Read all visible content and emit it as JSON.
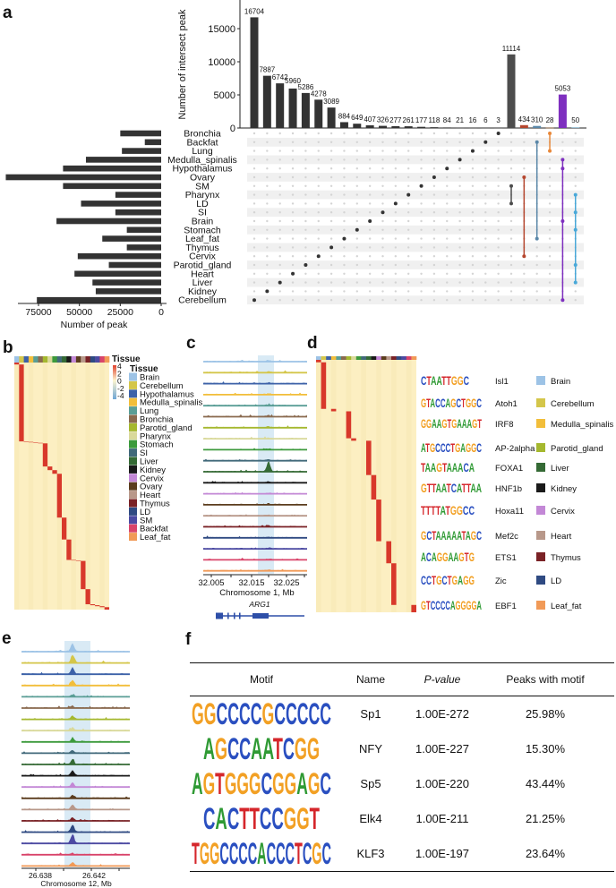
{
  "panel_labels": {
    "a": "a",
    "b": "b",
    "c": "c",
    "d": "d",
    "e": "e",
    "f": "f"
  },
  "letter_colors": {
    "A": "#2f9a34",
    "C": "#2a4fc0",
    "G": "#f2a024",
    "T": "#d5262b"
  },
  "chart_data": [
    {
      "id": "upset",
      "type": "bar",
      "title": "",
      "ylabel": "Number of intersect peak",
      "set_xlabel": "Number of peak",
      "ylim": [
        0,
        17500
      ],
      "yticks": [
        "0",
        "5000",
        "10000",
        "15000"
      ],
      "set_xlim": [
        0,
        100000
      ],
      "set_ticks": [
        "75000",
        "50000",
        "25000",
        "0"
      ],
      "sets": [
        {
          "name": "Bronchia",
          "size": 25000
        },
        {
          "name": "Backfat",
          "size": 10000
        },
        {
          "name": "Lung",
          "size": 24000
        },
        {
          "name": "Medulla_spinalis",
          "size": 46000
        },
        {
          "name": "Hypothalamus",
          "size": 60000
        },
        {
          "name": "Ovary",
          "size": 95000
        },
        {
          "name": "SM",
          "size": 60000
        },
        {
          "name": "Pharynx",
          "size": 28000
        },
        {
          "name": "LD",
          "size": 49000
        },
        {
          "name": "SI",
          "size": 28000
        },
        {
          "name": "Brain",
          "size": 64000
        },
        {
          "name": "Stomach",
          "size": 21000
        },
        {
          "name": "Leaf_fat",
          "size": 36000
        },
        {
          "name": "Thymus",
          "size": 21000
        },
        {
          "name": "Cervix",
          "size": 51000
        },
        {
          "name": "Parotid_gland",
          "size": 32000
        },
        {
          "name": "Heart",
          "size": 53000
        },
        {
          "name": "Liver",
          "size": 42000
        },
        {
          "name": "Kidney",
          "size": 40000
        },
        {
          "name": "Cerebellum",
          "size": 76000
        }
      ],
      "intersections": [
        {
          "value": 16704,
          "label": "16704",
          "sets": [
            "Cerebellum"
          ],
          "color": "#333333"
        },
        {
          "value": 7887,
          "label": "7887",
          "sets": [
            "Kidney"
          ],
          "color": "#333333"
        },
        {
          "value": 6742,
          "label": "6742",
          "sets": [
            "Liver"
          ],
          "color": "#333333"
        },
        {
          "value": 5960,
          "label": "5960",
          "sets": [
            "Heart"
          ],
          "color": "#333333"
        },
        {
          "value": 5286,
          "label": "5286",
          "sets": [
            "Parotid_gland"
          ],
          "color": "#333333"
        },
        {
          "value": 4278,
          "label": "4278",
          "sets": [
            "Cervix"
          ],
          "color": "#333333"
        },
        {
          "value": 3089,
          "label": "3089",
          "sets": [
            "Thymus"
          ],
          "color": "#333333"
        },
        {
          "value": 884,
          "label": "884",
          "sets": [
            "Leaf_fat"
          ],
          "color": "#333333"
        },
        {
          "value": 649,
          "label": "649",
          "sets": [
            "Stomach"
          ],
          "color": "#333333"
        },
        {
          "value": 407,
          "label": "407",
          "sets": [
            "Brain"
          ],
          "color": "#333333"
        },
        {
          "value": 326,
          "label": "326",
          "sets": [
            "SI"
          ],
          "color": "#333333"
        },
        {
          "value": 277,
          "label": "277",
          "sets": [
            "LD"
          ],
          "color": "#333333"
        },
        {
          "value": 261,
          "label": "261",
          "sets": [
            "Pharynx"
          ],
          "color": "#333333"
        },
        {
          "value": 177,
          "label": "177",
          "sets": [
            "SM"
          ],
          "color": "#333333"
        },
        {
          "value": 118,
          "label": "118",
          "sets": [
            "Ovary"
          ],
          "color": "#333333"
        },
        {
          "value": 84,
          "label": "84",
          "sets": [
            "Hypothalamus"
          ],
          "color": "#333333"
        },
        {
          "value": 21,
          "label": "21",
          "sets": [
            "Medulla_spinalis"
          ],
          "color": "#333333"
        },
        {
          "value": 16,
          "label": "16",
          "sets": [
            "Lung"
          ],
          "color": "#333333"
        },
        {
          "value": 6,
          "label": "6",
          "sets": [
            "Backfat"
          ],
          "color": "#333333"
        },
        {
          "value": 3,
          "label": "3",
          "sets": [
            "Bronchia"
          ],
          "color": "#333333"
        },
        {
          "value": 11114,
          "label": "11114",
          "sets": [
            "SM",
            "LD"
          ],
          "color": "#4d4d4d"
        },
        {
          "value": 434,
          "label": "434",
          "sets": [
            "Ovary",
            "Cervix"
          ],
          "color": "#b5462e"
        },
        {
          "value": 310,
          "label": "310",
          "sets": [
            "Backfat",
            "Leaf_fat"
          ],
          "color": "#5a87a8"
        },
        {
          "value": 28,
          "label": "28",
          "sets": [
            "Bronchia",
            "Lung"
          ],
          "color": "#e8883a"
        },
        {
          "value": 5053,
          "label": "5053",
          "sets": [
            "Medulla_spinalis",
            "Hypothalamus",
            "Brain",
            "Cerebellum"
          ],
          "color": "#7e2fbf"
        },
        {
          "value": 50,
          "label": "50",
          "sets": [
            "Pharynx",
            "SI",
            "Stomach",
            "Parotid_gland",
            "Liver"
          ],
          "color": "#49a8d8"
        }
      ]
    },
    {
      "id": "tissue-specific-heatmap",
      "type": "heatmap",
      "annotation_title": "Tissue",
      "legend_title": "Tissue",
      "scale_ticks": [
        "4",
        "2",
        "0",
        "-2",
        "-4"
      ],
      "scale_range": [
        -4,
        4
      ],
      "tissues": [
        {
          "name": "Brain",
          "color": "#9dc3e6"
        },
        {
          "name": "Cerebellum",
          "color": "#d4c64a"
        },
        {
          "name": "Hypothalamus",
          "color": "#3d62a8"
        },
        {
          "name": "Medulla_spinalis",
          "color": "#f2be3a"
        },
        {
          "name": "Lung",
          "color": "#5a9e96"
        },
        {
          "name": "Bronchia",
          "color": "#8a6a4f"
        },
        {
          "name": "Parotid_gland",
          "color": "#a5b82f"
        },
        {
          "name": "Pharynx",
          "color": "#d9d99a"
        },
        {
          "name": "Stomach",
          "color": "#3c9a3c"
        },
        {
          "name": "SI",
          "color": "#41697a"
        },
        {
          "name": "Liver",
          "color": "#356a35"
        },
        {
          "name": "Kidney",
          "color": "#1a1a1a"
        },
        {
          "name": "Cervix",
          "color": "#c388d6"
        },
        {
          "name": "Ovary",
          "color": "#5b3d1e"
        },
        {
          "name": "Heart",
          "color": "#b8988a"
        },
        {
          "name": "Thymus",
          "color": "#7a2226"
        },
        {
          "name": "LD",
          "color": "#2f4a82"
        },
        {
          "name": "SM",
          "color": "#4c4aa2"
        },
        {
          "name": "Backfat",
          "color": "#d9446a"
        },
        {
          "name": "Leaf_fat",
          "color": "#f19a57"
        }
      ],
      "blocks": [
        {
          "col": 0,
          "frac": 0.008
        },
        {
          "col": 1,
          "frac": 0.316
        },
        {
          "col": 2,
          "frac": 0.002
        },
        {
          "col": 3,
          "frac": 0.002
        },
        {
          "col": 4,
          "frac": 0.002
        },
        {
          "col": 5,
          "frac": 0.002
        },
        {
          "col": 6,
          "frac": 0.095
        },
        {
          "col": 7,
          "frac": 0.015
        },
        {
          "col": 8,
          "frac": 0.015
        },
        {
          "col": 9,
          "frac": 0.18
        },
        {
          "col": 10,
          "frac": 0.09
        },
        {
          "col": 11,
          "frac": 0.084
        },
        {
          "col": 12,
          "frac": 0.002
        },
        {
          "col": 13,
          "frac": 0.002
        },
        {
          "col": 14,
          "frac": 0.116
        },
        {
          "col": 15,
          "frac": 0.062
        },
        {
          "col": 16,
          "frac": 0.004
        },
        {
          "col": 17,
          "frac": 0.004
        },
        {
          "col": 18,
          "frac": 0.004
        },
        {
          "col": 19,
          "frac": 0.01
        }
      ]
    },
    {
      "id": "arg1-tracks",
      "type": "area",
      "xlabel": "Chromosome 1, Mb",
      "xticks": [
        "32.005",
        "32.015",
        "32.025"
      ],
      "gene": "ARG1",
      "peak_heights": [
        0.1,
        0.08,
        0.1,
        0.1,
        0.08,
        0.1,
        0.08,
        0.08,
        0.1,
        0.08,
        1.0,
        0.1,
        0.08,
        0.1,
        0.08,
        0.1,
        0.08,
        0.08,
        0.08,
        0.08
      ]
    },
    {
      "id": "motif-heatmap",
      "type": "heatmap",
      "blocks": [
        {
          "col": 0,
          "frac": 0.01
        },
        {
          "col": 1,
          "frac": 0.19
        },
        {
          "col": 3,
          "frac": 0.01
        },
        {
          "col": 6,
          "frac": 0.11
        },
        {
          "col": 7,
          "frac": 0.01
        },
        {
          "col": 10,
          "frac": 0.14
        },
        {
          "col": 11,
          "frac": 0.1
        },
        {
          "col": 12,
          "frac": 0.17
        },
        {
          "col": 14,
          "frac": 0.09
        },
        {
          "col": 15,
          "frac": 0.17
        },
        {
          "col": 19,
          "frac": 0.03
        }
      ],
      "motifs": [
        {
          "logo": "CTAATTGGC",
          "name": "Isl1",
          "tissue": "Brain",
          "color": "#9dc3e6"
        },
        {
          "logo": "GTACCAGCTGGC",
          "name": "Atoh1",
          "tissue": "Cerebellum",
          "color": "#d4c64a"
        },
        {
          "logo": "GGAAGTGAAAGT",
          "name": "IRF8",
          "tissue": "Medulla_spinalis",
          "color": "#f2be3a"
        },
        {
          "logo": "ATGCCCTGAGGC",
          "name": "AP-2alpha",
          "tissue": "Parotid_gland",
          "color": "#a5b82f"
        },
        {
          "logo": "TAAGTAAACA",
          "name": "FOXA1",
          "tissue": "Liver",
          "color": "#356a35"
        },
        {
          "logo": "GTTAATCATTAA",
          "name": "HNF1b",
          "tissue": "Kidney",
          "color": "#1a1a1a"
        },
        {
          "logo": "TTTTATGGCC",
          "name": "Hoxa11",
          "tissue": "Cervix",
          "color": "#c388d6"
        },
        {
          "logo": "GCTAAAAATAGC",
          "name": "Mef2c",
          "tissue": "Heart",
          "color": "#b8988a"
        },
        {
          "logo": "ACAGGAAGTG",
          "name": "ETS1",
          "tissue": "Thymus",
          "color": "#7a2226"
        },
        {
          "logo": "CCTGCTGAGG",
          "name": "Zic",
          "tissue": "LD",
          "color": "#2f4a82"
        },
        {
          "logo": "GTCCCCAGGGGA",
          "name": "EBF1",
          "tissue": "Leaf_fat",
          "color": "#f19a57"
        }
      ]
    },
    {
      "id": "chr12-tracks",
      "type": "area",
      "xlabel": "Chromosome 12, Mb",
      "xticks": [
        "26.638",
        "26.642"
      ],
      "peak_heights": [
        0.8,
        0.8,
        0.6,
        0.55,
        0.2,
        0.2,
        0.35,
        0.3,
        0.35,
        0.25,
        0.5,
        0.5,
        0.45,
        0.3,
        0.5,
        0.3,
        0.7,
        0.9,
        0.1,
        0.35
      ]
    },
    {
      "id": "motif-table",
      "type": "table",
      "columns": [
        "Motif",
        "Name",
        "P-value",
        "Peaks with motif"
      ],
      "rows": [
        {
          "logo": "GGCCCCGCCCCC",
          "name": "Sp1",
          "p": "1.00E-272",
          "peaks": "25.98%"
        },
        {
          "logo": "AGCCAATCGG",
          "name": "NFY",
          "p": "1.00E-227",
          "peaks": "15.30%"
        },
        {
          "logo": "AGTGGGCGGAGC",
          "name": "Sp5",
          "p": "1.00E-220",
          "peaks": "43.44%"
        },
        {
          "logo": "CACTTCCGGT",
          "name": "Elk4",
          "p": "1.00E-211",
          "peaks": "21.25%"
        },
        {
          "logo": "TGGCCCCACCCTCGC",
          "name": "KLF3",
          "p": "1.00E-197",
          "peaks": "23.64%"
        }
      ]
    }
  ]
}
